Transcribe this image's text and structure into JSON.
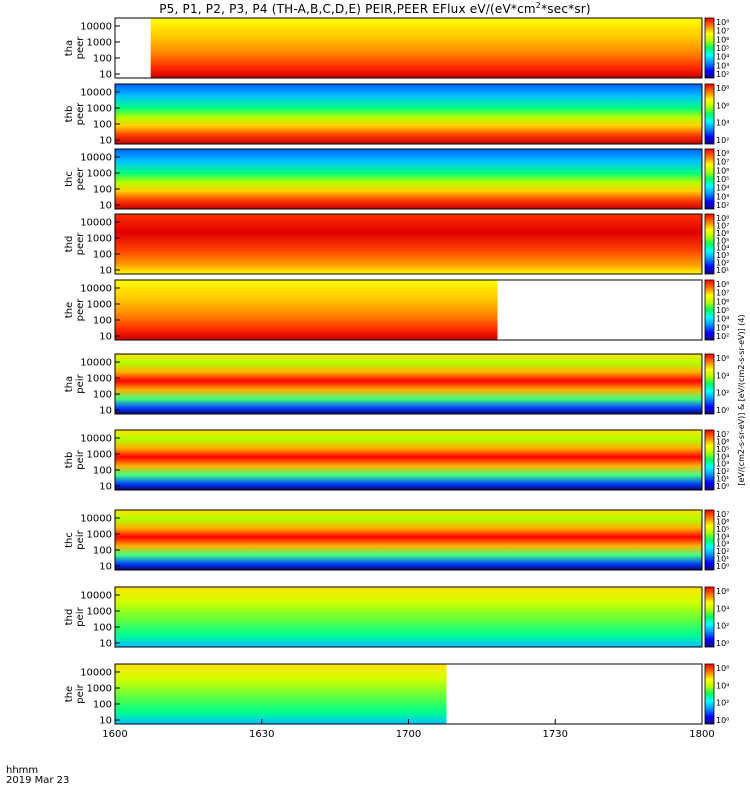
{
  "title": {
    "text": "P5, P1, P2, P3, P4 (TH-A,B,C,D,E) PEIR,PEER EFlux eV/(eV*cm",
    "sup": "2",
    "tail": "*sec*sr)"
  },
  "xaxis": {
    "label_line1": "hhmm",
    "label_line2": "2019 Mar 23",
    "ticks": [
      "1600",
      "1630",
      "1700",
      "1730",
      "1800"
    ]
  },
  "colors": {
    "spectrum": [
      "#ffffff",
      "#000000",
      "#1a0080",
      "#0000ff",
      "#0080ff",
      "#00e0ff",
      "#00ff80",
      "#40ff00",
      "#c0ff00",
      "#ffff00",
      "#ffc000",
      "#ff6000",
      "#ff0000",
      "#c00000"
    ]
  },
  "chart_data": {
    "type": "heatmap",
    "title": "P5, P1, P2, P3, P4 (TH-A,B,C,D,E) PEIR,PEER EFlux eV/(eV*cm2*sec*sr)",
    "x_range": [
      "1600",
      "1800"
    ],
    "y_scale": "log",
    "panels": [
      {
        "ylabel": [
          "tha",
          "peer"
        ],
        "yticks": [
          "10000",
          "1000",
          "100",
          "10"
        ],
        "cbar_ticks": [
          "10⁸",
          "10⁷",
          "10⁶",
          "10⁵",
          "10⁴",
          "10³",
          "10²"
        ],
        "coverage": [
          1607,
          1800
        ]
      },
      {
        "ylabel": [
          "thb",
          "peer"
        ],
        "yticks": [
          "10000",
          "1000",
          "100",
          "10"
        ],
        "cbar_ticks": [
          "10⁸",
          "10⁶",
          "10⁴",
          "10²"
        ],
        "coverage": [
          1600,
          1800
        ]
      },
      {
        "ylabel": [
          "thc",
          "peer"
        ],
        "yticks": [
          "10000",
          "1000",
          "100",
          "10"
        ],
        "cbar_ticks": [
          "10⁸",
          "10⁷",
          "10⁶",
          "10⁵",
          "10⁴",
          "10³",
          "10²"
        ],
        "coverage": [
          1600,
          1800
        ]
      },
      {
        "ylabel": [
          "thd",
          "peer"
        ],
        "yticks": [
          "10000",
          "1000",
          "100",
          "10"
        ],
        "cbar_ticks": [
          "10⁸",
          "10⁷",
          "10⁶",
          "10⁵",
          "10⁴",
          "10³",
          "10²",
          "10¹"
        ],
        "coverage": [
          1600,
          1800
        ]
      },
      {
        "ylabel": [
          "the",
          "peer"
        ],
        "yticks": [
          "10000",
          "1000",
          "100",
          "10"
        ],
        "cbar_ticks": [
          "10⁸",
          "10⁷",
          "10⁶",
          "10⁵",
          "10⁴",
          "10³",
          "10²"
        ],
        "coverage": [
          1600,
          1715
        ]
      },
      {
        "ylabel": [
          "tha",
          "peir"
        ],
        "yticks": [
          "10000",
          "1000",
          "100",
          "10"
        ],
        "cbar_ticks": [
          "10⁶",
          "10⁴",
          "10²",
          "10⁰"
        ],
        "coverage": [
          1600,
          1800
        ]
      },
      {
        "ylabel": [
          "thb",
          "peir"
        ],
        "yticks": [
          "10000",
          "1000",
          "100",
          "10"
        ],
        "cbar_ticks": [
          "10⁷",
          "10⁶",
          "10⁵",
          "10⁴",
          "10³",
          "10²",
          "10¹",
          "10⁰"
        ],
        "coverage": [
          1600,
          1800
        ]
      },
      {
        "ylabel": [
          "thc",
          "peir"
        ],
        "yticks": [
          "10000",
          "1000",
          "100",
          "10"
        ],
        "cbar_ticks": [
          "10⁷",
          "10⁶",
          "10⁵",
          "10⁴",
          "10³",
          "10²",
          "10¹",
          "10⁰"
        ],
        "coverage": [
          1600,
          1800
        ]
      },
      {
        "ylabel": [
          "thd",
          "peir"
        ],
        "yticks": [
          "10000",
          "1000",
          "100",
          "10"
        ],
        "cbar_ticks": [
          "10⁶",
          "10⁴",
          "10²",
          "10⁰"
        ],
        "coverage": [
          1600,
          1800
        ]
      },
      {
        "ylabel": [
          "the",
          "peir"
        ],
        "yticks": [
          "10000",
          "1000",
          "100",
          "10"
        ],
        "cbar_ticks": [
          "10⁶",
          "10⁴",
          "10²",
          "10⁰"
        ],
        "coverage": [
          1600,
          1705
        ]
      }
    ],
    "colorbar_label": "[eV/(cm2-s-sr-eV)] & [eV/(cm2-s-sr-eV)] (4)"
  }
}
